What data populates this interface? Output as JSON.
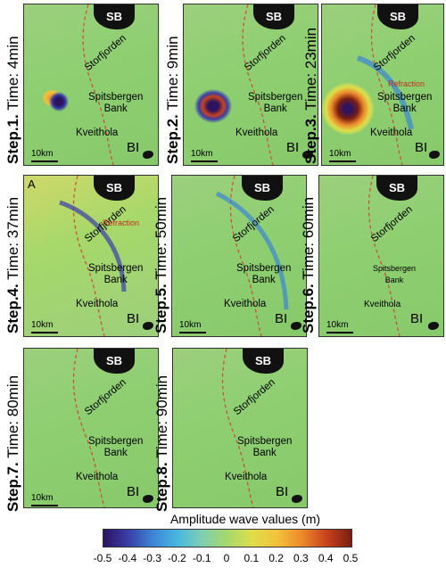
{
  "panels": [
    {
      "step": "Step.1.",
      "time": "Time: 4min"
    },
    {
      "step": "Step.2.",
      "time": "Time: 9min"
    },
    {
      "step": "Step.3.",
      "time": "Time: 23min"
    },
    {
      "step": "Step.4.",
      "time": "Time: 37min"
    },
    {
      "step": "Step.5.",
      "time": "Time: 50min"
    },
    {
      "step": "Step.6.",
      "time": "Time: 60min"
    },
    {
      "step": "Step.7.",
      "time": "Time: 80min"
    },
    {
      "step": "Step.8.",
      "time": "Time: 90min"
    }
  ],
  "map_labels": {
    "sb": "SB",
    "storfjorden": "Storfjorden",
    "spitsbergen_bank": "Spitsbergen\nBank",
    "kveithola": "Kveithola",
    "bi": "BI",
    "scale": "10km",
    "refraction": "Refraction",
    "corner_a": "A"
  },
  "colorbar": {
    "title": "Amplitude wave values  (m)",
    "ticks": [
      "-0.5",
      "-0.4",
      "-0.3",
      "-0.2",
      "-0.1",
      "0",
      "0.1",
      "0.2",
      "0.3",
      "0.4",
      "0.5"
    ],
    "colors": [
      "#2c1460",
      "#3b86d6",
      "#7fd0b0",
      "#a6d86a",
      "#f2c23a",
      "#c8421c",
      "#7a1e12"
    ]
  }
}
